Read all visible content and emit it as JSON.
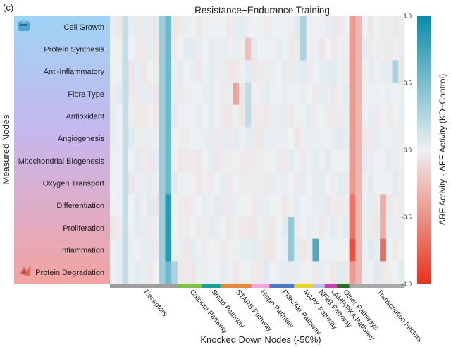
{
  "panel_label": "(c)",
  "chart_data": {
    "type": "heatmap",
    "title": "Resistance−Endurance Training",
    "xlabel": "Knocked Down Nodes (-50%)",
    "ylabel": "Measured Nodes",
    "colorbar": {
      "label": "ΔRE Activity - ΔEE Activity (KD−Control)",
      "ticks": [
        "1.0",
        "0.5",
        "0.0",
        "-0.5",
        "-1.0"
      ],
      "range": [
        -1.0,
        1.0
      ],
      "colors": {
        "high": "#0a8aa8",
        "mid": "#eef1f3",
        "low": "#e8321c"
      }
    },
    "rows": [
      "Cell Growth",
      "Protein Synthesis",
      "Anti-Inflammatory",
      "Fibre Type",
      "Antioxidant",
      "Angiogenesis",
      "Mitochondrial Biogenesis",
      "Oxygen Transport",
      "Differentiation",
      "Proliferation",
      "Inflammation",
      "Protein Degradation"
    ],
    "groups": [
      {
        "name": "Receptors",
        "color": "#9e9e9e",
        "columns": 11
      },
      {
        "name": "Calcium Pathway",
        "color": "#7dc242",
        "columns": 4
      },
      {
        "name": "Smad Pathway",
        "color": "#14a39a",
        "columns": 3
      },
      {
        "name": "STARS Pathway",
        "color": "#e8893a",
        "columns": 5
      },
      {
        "name": "Hippo Pathway",
        "color": "#f3a8dc",
        "columns": 3
      },
      {
        "name": "PI3K/Akt Pathway",
        "color": "#4f77c9",
        "columns": 4
      },
      {
        "name": "MAPK Pathway",
        "color": "#e9d625",
        "columns": 3
      },
      {
        "name": "NFkB Pathway",
        "color": "#bfbfe8",
        "columns": 2
      },
      {
        "name": "cAMP/PKA Pathway",
        "color": "#c93fb4",
        "columns": 2
      },
      {
        "name": "Other Pathways",
        "color": "#2f6b1f",
        "columns": 2
      },
      {
        "name": "Transcription Factors",
        "color": "#a9a9a9",
        "columns": 9
      }
    ],
    "highlights": [
      {
        "row": "all",
        "col": 2,
        "v": 0.18
      },
      {
        "row": "all",
        "col": 8,
        "v": 0.35
      },
      {
        "row": "all",
        "col": 9,
        "v": 0.55
      },
      {
        "row": "all",
        "col": 39,
        "v": -0.45
      },
      {
        "row": "all",
        "col": 40,
        "v": -0.3
      },
      {
        "row": [
          8,
          9,
          10
        ],
        "col": 9,
        "v": 0.85
      },
      {
        "row": [
          10
        ],
        "col": 39,
        "v": -0.85
      },
      {
        "row": [
          8,
          9
        ],
        "col": 39,
        "v": -0.65
      },
      {
        "row": [
          10
        ],
        "col": 33,
        "v": 0.7
      },
      {
        "row": [
          9,
          10
        ],
        "col": 29,
        "v": 0.4
      },
      {
        "row": [
          10
        ],
        "col": 44,
        "v": -0.7
      },
      {
        "row": [
          8,
          9
        ],
        "col": 44,
        "v": -0.35
      },
      {
        "row": [
          3
        ],
        "col": 20,
        "v": -0.4
      },
      {
        "row": [
          1
        ],
        "col": 22,
        "v": -0.25
      },
      {
        "row": [
          0,
          1
        ],
        "col": 31,
        "v": 0.3
      },
      {
        "row": [
          2
        ],
        "col": 46,
        "v": 0.3
      },
      {
        "row": [
          3,
          4
        ],
        "col": 22,
        "v": 0.2
      },
      {
        "row": [
          11
        ],
        "col": 10,
        "v": 0.3
      }
    ]
  }
}
